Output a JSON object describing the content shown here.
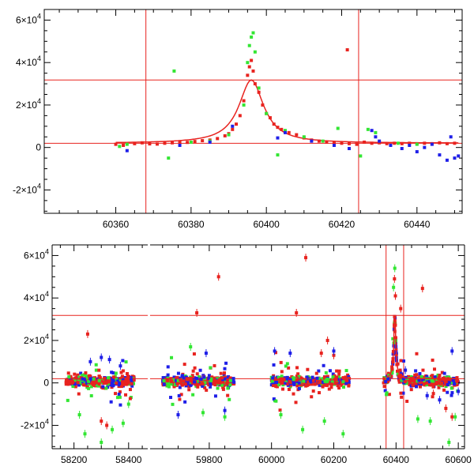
{
  "colors": {
    "red": "#e8231f",
    "green": "#33e633",
    "blue": "#1f1fe8"
  },
  "chart_data": [
    {
      "type": "scatter",
      "xlim": [
        60341,
        60452
      ],
      "ylim": [
        -31000,
        65000
      ],
      "x_ticks": [
        {
          "value": 60360,
          "label": "60360"
        },
        {
          "value": 60380,
          "label": "60380"
        },
        {
          "value": 60400,
          "label": "60400"
        },
        {
          "value": 60420,
          "label": "60420"
        },
        {
          "value": 60440,
          "label": "60440"
        }
      ],
      "y_ticks": [
        {
          "value": -20000,
          "base": "-2×10",
          "exp": "4"
        },
        {
          "value": 0,
          "base": "0",
          "exp": ""
        },
        {
          "value": 20000,
          "base": "2×10",
          "exp": "4"
        },
        {
          "value": 40000,
          "base": "4×10",
          "exp": "4"
        },
        {
          "value": 60000,
          "base": "6×10",
          "exp": "4"
        }
      ],
      "hlines": [
        31800,
        2000
      ],
      "vlines": [
        60368,
        60424.5
      ],
      "model": {
        "t0": 60396,
        "peak": 31800,
        "baseline": 2000,
        "halfwidth": 4
      },
      "series": [
        {
          "color": "red",
          "points": [
            [
              60360,
              1500
            ],
            [
              60362,
              1000
            ],
            [
              60365,
              1800
            ],
            [
              60367,
              2200
            ],
            [
              60369,
              1700
            ],
            [
              60371,
              1600
            ],
            [
              60373,
              2000
            ],
            [
              60375,
              2200
            ],
            [
              60377,
              2500
            ],
            [
              60379,
              2400
            ],
            [
              60381,
              2800
            ],
            [
              60383,
              3200
            ],
            [
              60385,
              3500
            ],
            [
              60387,
              4200
            ],
            [
              60389,
              5500
            ],
            [
              60390,
              6500
            ],
            [
              60391,
              8500
            ],
            [
              60392,
              11000
            ],
            [
              60393,
              15000
            ],
            [
              60394,
              22000
            ],
            [
              60395,
              34000
            ],
            [
              60395.5,
              38000
            ],
            [
              60396,
              41000
            ],
            [
              60396.5,
              36000
            ],
            [
              60397,
              30000
            ],
            [
              60398,
              26000
            ],
            [
              60399,
              20000
            ],
            [
              60400,
              16000
            ],
            [
              60401,
              14000
            ],
            [
              60402,
              11000
            ],
            [
              60403,
              9500
            ],
            [
              60404,
              8500
            ],
            [
              60405,
              7500
            ],
            [
              60406,
              7000
            ],
            [
              60408,
              6000
            ],
            [
              60410,
              4500
            ],
            [
              60412,
              3500
            ],
            [
              60414,
              3000
            ],
            [
              60416,
              2500
            ],
            [
              60418,
              2200
            ],
            [
              60420,
              2000
            ],
            [
              60421.5,
              46000
            ],
            [
              60422,
              1800
            ],
            [
              60424,
              1500
            ],
            [
              60426,
              2500
            ],
            [
              60428,
              2000
            ],
            [
              60430,
              2200
            ],
            [
              60432,
              1800
            ],
            [
              60434,
              2000
            ],
            [
              60436,
              1800
            ],
            [
              60438,
              2000
            ],
            [
              60440,
              1800
            ],
            [
              60442,
              2000
            ],
            [
              60444,
              1800
            ],
            [
              60446,
              2200
            ],
            [
              60448,
              1800
            ],
            [
              60450,
              2000
            ]
          ]
        },
        {
          "color": "green",
          "points": [
            [
              60361,
              500
            ],
            [
              60363,
              1500
            ],
            [
              60374,
              -5000
            ],
            [
              60375.5,
              36000
            ],
            [
              60380,
              2500
            ],
            [
              60385,
              3000
            ],
            [
              60390,
              6000
            ],
            [
              60394,
              20000
            ],
            [
              60395,
              40000
            ],
            [
              60395.5,
              48000
            ],
            [
              60396,
              52000
            ],
            [
              60396.5,
              54000
            ],
            [
              60397,
              45000
            ],
            [
              60398,
              28000
            ],
            [
              60400,
              16000
            ],
            [
              60403,
              -3500
            ],
            [
              60405,
              8000
            ],
            [
              60410,
              5000
            ],
            [
              60415,
              3000
            ],
            [
              60419,
              9000
            ],
            [
              60425,
              -4000
            ],
            [
              60427,
              8500
            ],
            [
              60429,
              7000
            ],
            [
              60435,
              2000
            ],
            [
              60440,
              1500
            ]
          ]
        },
        {
          "color": "blue",
          "points": [
            [
              60363,
              -1500
            ],
            [
              60377,
              1000
            ],
            [
              60385,
              2500
            ],
            [
              60391,
              10000
            ],
            [
              60403,
              4500
            ],
            [
              60405,
              7000
            ],
            [
              60412,
              3000
            ],
            [
              60418,
              1000
            ],
            [
              60422,
              -500
            ],
            [
              60428,
              8000
            ],
            [
              60429,
              5000
            ],
            [
              60430,
              3000
            ],
            [
              60433,
              1000
            ],
            [
              60436,
              -500
            ],
            [
              60438,
              1000
            ],
            [
              60440,
              -2000
            ],
            [
              60442,
              0
            ],
            [
              60444,
              1500
            ],
            [
              60446,
              -3500
            ],
            [
              60448,
              -6000
            ],
            [
              60449,
              5000
            ],
            [
              60450,
              -5000
            ],
            [
              60451,
              -4000
            ]
          ]
        }
      ]
    },
    {
      "type": "scatter",
      "ylim": [
        -31000,
        65000
      ],
      "x_ticks": [
        {
          "value": 58200,
          "label": "58200"
        },
        {
          "value": 58400,
          "label": "58400"
        },
        {
          "value": 59800,
          "label": "59800"
        },
        {
          "value": 60000,
          "label": "60000"
        },
        {
          "value": 60200,
          "label": "60200"
        },
        {
          "value": 60400,
          "label": "60400"
        },
        {
          "value": 60600,
          "label": "60600"
        }
      ],
      "y_ticks": [
        {
          "value": -20000,
          "base": "-2×10",
          "exp": "4"
        },
        {
          "value": 0,
          "base": "0",
          "exp": ""
        },
        {
          "value": 20000,
          "base": "2×10",
          "exp": "4"
        },
        {
          "value": 40000,
          "base": "4×10",
          "exp": "4"
        },
        {
          "value": 60000,
          "base": "6×10",
          "exp": "4"
        }
      ],
      "hlines": [
        31800,
        2000
      ],
      "vlines": [
        60368,
        60424.5
      ],
      "model": {
        "t0": 60396,
        "peak": 31800,
        "baseline": 2000,
        "halfwidth": 4
      },
      "segments": [
        {
          "range": [
            58120,
            58470
          ],
          "clusters": [
            [
              58170,
              58420
            ]
          ]
        },
        {
          "range": [
            59610,
            60620
          ],
          "clusters": [
            [
              59650,
              59880
            ],
            [
              60000,
              60250
            ],
            [
              60360,
              60600
            ]
          ]
        }
      ],
      "outliers": [
        {
          "color": "red",
          "points": [
            [
              58250,
              23000
            ],
            [
              58300,
              -18000
            ],
            [
              58320,
              -20000
            ],
            [
              59760,
              33000
            ],
            [
              59830,
              50000
            ],
            [
              60080,
              33000
            ],
            [
              60110,
              59000
            ],
            [
              60160,
              14000
            ],
            [
              60180,
              20000
            ],
            [
              60200,
              13000
            ],
            [
              60395,
              49000
            ],
            [
              60398,
              41000
            ],
            [
              60415,
              35000
            ],
            [
              60485,
              44500
            ],
            [
              60520,
              -5000
            ],
            [
              60560,
              -12000
            ],
            [
              60580,
              -16000
            ]
          ]
        },
        {
          "color": "green",
          "points": [
            [
              58220,
              -15000
            ],
            [
              58240,
              -24000
            ],
            [
              58300,
              -28000
            ],
            [
              58340,
              -22000
            ],
            [
              58380,
              -19000
            ],
            [
              58400,
              -10000
            ],
            [
              59740,
              17000
            ],
            [
              59780,
              -14000
            ],
            [
              59850,
              -16000
            ],
            [
              60030,
              -15000
            ],
            [
              60100,
              -22000
            ],
            [
              60170,
              -18000
            ],
            [
              60230,
              -24000
            ],
            [
              60392,
              45000
            ],
            [
              60396,
              54000
            ],
            [
              60470,
              -17000
            ],
            [
              60510,
              -18000
            ],
            [
              60570,
              -28000
            ],
            [
              60590,
              -16000
            ]
          ]
        },
        {
          "color": "blue",
          "points": [
            [
              58260,
              10000
            ],
            [
              58300,
              12000
            ],
            [
              58330,
              11000
            ],
            [
              58370,
              8000
            ],
            [
              59700,
              -15000
            ],
            [
              59790,
              14000
            ],
            [
              59850,
              -13000
            ],
            [
              60010,
              15000
            ],
            [
              60060,
              14000
            ],
            [
              60200,
              15000
            ],
            [
              60430,
              6000
            ],
            [
              60500,
              -6000
            ],
            [
              60540,
              -8000
            ],
            [
              60580,
              15000
            ],
            [
              60600,
              -4000
            ]
          ]
        }
      ]
    }
  ]
}
